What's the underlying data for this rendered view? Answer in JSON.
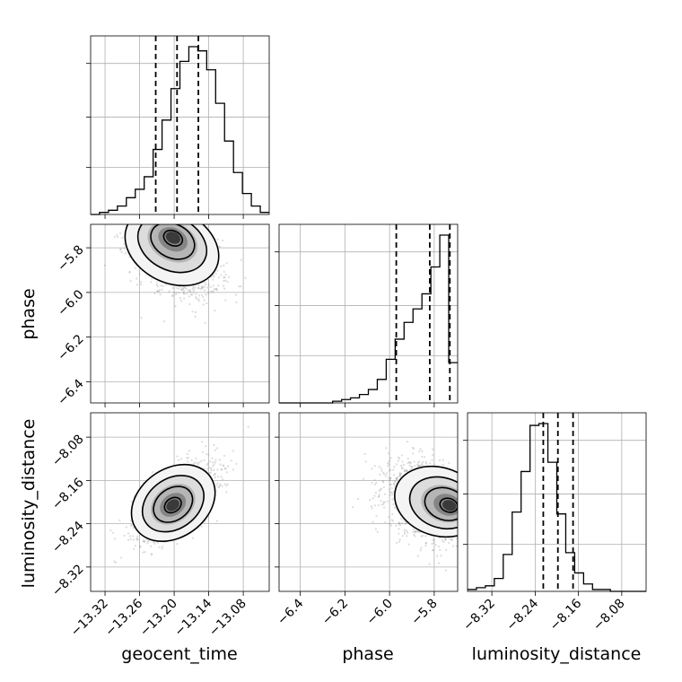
{
  "chart_data": {
    "type": "corner",
    "parameters": [
      "geocent_time",
      "phase",
      "luminosity_distance"
    ],
    "ranges": {
      "geocent_time": [
        -13.345,
        -13.035
      ],
      "phase": [
        -6.495,
        -5.695
      ],
      "luminosity_distance": [
        -8.365,
        -8.035
      ]
    },
    "ticks": {
      "geocent_time": [
        "-13.32",
        "-13.26",
        "-13.20",
        "-13.14",
        "-13.08"
      ],
      "phase": [
        "-6.4",
        "-6.2",
        "-6.0",
        "-5.8"
      ],
      "luminosity_distance": [
        "-8.32",
        "-8.24",
        "-8.16",
        "-8.08"
      ]
    },
    "grid": true,
    "histograms": [
      {
        "param": "geocent_time",
        "quantiles": [
          -13.232,
          -13.195,
          -13.158
        ],
        "bins_start": -13.345,
        "bin_width": 0.0155,
        "counts": [
          0,
          1,
          2,
          4,
          8,
          12,
          18,
          31,
          45,
          60,
          73,
          80,
          78,
          69,
          53,
          35,
          20,
          10,
          4,
          1
        ]
      },
      {
        "param": "phase",
        "quantiles": [
          -5.97,
          -5.82,
          -5.73
        ],
        "bins_start": -6.495,
        "bin_width": 0.04,
        "counts": [
          0,
          0,
          0,
          0,
          0,
          0,
          1,
          2,
          3,
          5,
          8,
          14,
          26,
          38,
          48,
          56,
          65,
          81,
          100,
          24
        ]
      },
      {
        "param": "luminosity_distance",
        "quantiles": [
          -8.225,
          -8.198,
          -8.17
        ],
        "bins_start": -8.365,
        "bin_width": 0.0165,
        "counts": [
          1,
          2,
          3,
          7,
          20,
          43,
          65,
          90,
          91,
          70,
          42,
          21,
          10,
          4,
          1,
          1,
          0,
          0,
          0,
          0
        ]
      }
    ],
    "scatter_panels": [
      {
        "x": "geocent_time",
        "y": "phase",
        "center": [
          -13.198,
          -5.84
        ],
        "sd": [
          0.038,
          0.09
        ],
        "corr": -0.45,
        "mode": [
          -13.21,
          -5.75
        ]
      },
      {
        "x": "geocent_time",
        "y": "luminosity_distance",
        "center": [
          -13.198,
          -8.198
        ],
        "sd": [
          0.035,
          0.035
        ],
        "corr": 0.6,
        "mode": [
          -13.205,
          -8.205
        ]
      },
      {
        "x": "phase",
        "y": "luminosity_distance",
        "center": [
          -5.84,
          -8.198
        ],
        "sd": [
          0.09,
          0.035
        ],
        "corr": -0.3,
        "mode": [
          -5.72,
          -8.2
        ]
      }
    ]
  }
}
